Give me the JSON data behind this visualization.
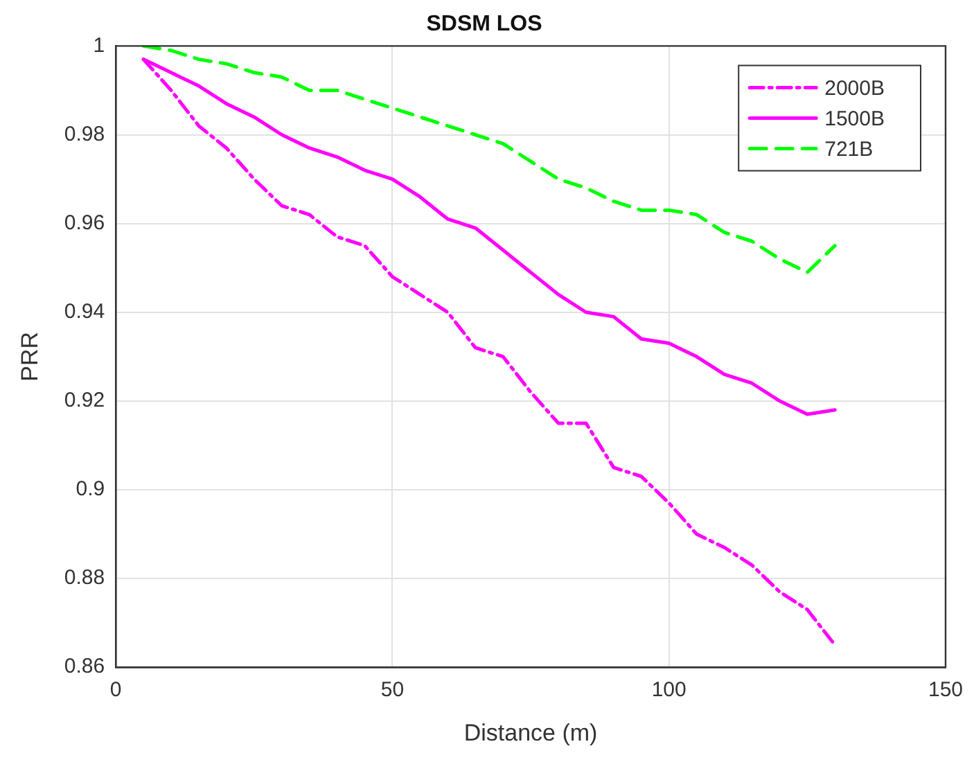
{
  "chart_data": {
    "type": "line",
    "title": "SDSM LOS",
    "xlabel": "Distance (m)",
    "ylabel": "PRR",
    "x": [
      5,
      10,
      15,
      20,
      25,
      30,
      35,
      40,
      45,
      50,
      55,
      60,
      65,
      70,
      75,
      80,
      85,
      90,
      95,
      100,
      105,
      110,
      115,
      120,
      125,
      130
    ],
    "series": [
      {
        "name": "2000B",
        "color": "#ff00ff",
        "line_style": "dashdot",
        "values": [
          0.997,
          0.99,
          0.982,
          0.977,
          0.97,
          0.964,
          0.962,
          0.957,
          0.955,
          0.948,
          0.944,
          0.94,
          0.932,
          0.93,
          0.922,
          0.915,
          0.915,
          0.905,
          0.903,
          0.897,
          0.89,
          0.887,
          0.883,
          0.877,
          0.873,
          0.865
        ]
      },
      {
        "name": "1500B",
        "color": "#ff00ff",
        "line_style": "solid",
        "values": [
          0.997,
          0.994,
          0.991,
          0.987,
          0.984,
          0.98,
          0.977,
          0.975,
          0.972,
          0.97,
          0.966,
          0.961,
          0.959,
          0.954,
          0.949,
          0.944,
          0.94,
          0.939,
          0.934,
          0.933,
          0.93,
          0.926,
          0.924,
          0.92,
          0.917,
          0.918
        ]
      },
      {
        "name": "721B",
        "color": "#00ff00",
        "line_style": "dashed",
        "values": [
          1.0,
          0.999,
          0.997,
          0.996,
          0.994,
          0.993,
          0.99,
          0.99,
          0.988,
          0.986,
          0.984,
          0.982,
          0.98,
          0.978,
          0.974,
          0.97,
          0.968,
          0.965,
          0.963,
          0.963,
          0.962,
          0.958,
          0.956,
          0.952,
          0.949,
          0.955
        ]
      }
    ],
    "xlim": [
      0,
      150
    ],
    "xticks": [
      0,
      50,
      100,
      150
    ],
    "ylim": [
      0.86,
      1
    ],
    "yticks": [
      0.86,
      0.88,
      0.9,
      0.92,
      0.94,
      0.96,
      0.98,
      1
    ],
    "grid": true,
    "legend": "top right",
    "marker": "none"
  }
}
